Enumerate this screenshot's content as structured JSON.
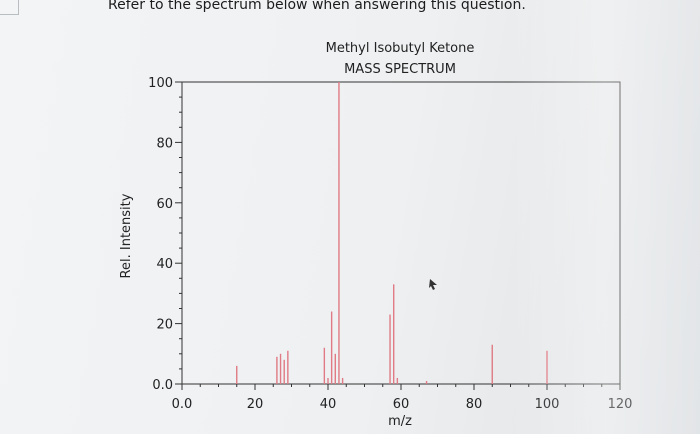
{
  "question": "Refer to the spectrum below when answering this question.",
  "chart_data": {
    "type": "bar",
    "title": "Methyl Isobutyl Ketone",
    "subtitle": "MASS SPECTRUM",
    "xlabel": "m/z",
    "ylabel": "Rel. Intensity",
    "xlim": [
      0,
      120
    ],
    "ylim": [
      0,
      100
    ],
    "xticks": [
      "0.0",
      "20",
      "40",
      "60",
      "80",
      "100",
      "120"
    ],
    "yticks": [
      "0.0",
      "20",
      "40",
      "60",
      "80",
      "100"
    ],
    "peaks": [
      {
        "x": 15,
        "y": 6
      },
      {
        "x": 26,
        "y": 9
      },
      {
        "x": 27,
        "y": 10
      },
      {
        "x": 28,
        "y": 8
      },
      {
        "x": 29,
        "y": 11
      },
      {
        "x": 39,
        "y": 12
      },
      {
        "x": 40,
        "y": 2
      },
      {
        "x": 41,
        "y": 24
      },
      {
        "x": 42,
        "y": 10
      },
      {
        "x": 43,
        "y": 100
      },
      {
        "x": 44,
        "y": 2
      },
      {
        "x": 57,
        "y": 23
      },
      {
        "x": 58,
        "y": 33
      },
      {
        "x": 59,
        "y": 2
      },
      {
        "x": 67,
        "y": 1
      },
      {
        "x": 85,
        "y": 13
      },
      {
        "x": 100,
        "y": 11
      }
    ],
    "colors": {
      "peak": "#e07a84",
      "axis": "#333333"
    }
  }
}
